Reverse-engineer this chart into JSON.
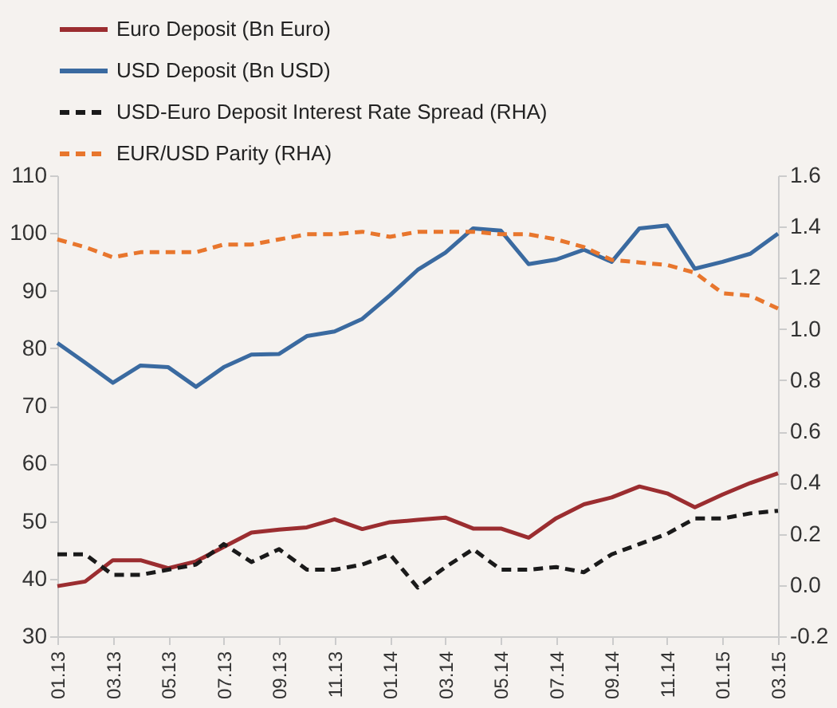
{
  "chart_data": {
    "type": "line",
    "categories": [
      "01.13",
      null,
      "03.13",
      null,
      "05.13",
      null,
      "07.13",
      null,
      "09.13",
      null,
      "11.13",
      null,
      "01.14",
      null,
      "03.14",
      null,
      "05.14",
      null,
      "07.14",
      null,
      "09.14",
      null,
      "11.14",
      null,
      "01.15",
      null,
      "03.15"
    ],
    "series": [
      {
        "name": "Euro Deposit (Bn Euro)",
        "color": "#9b2d30",
        "line_style": "solid",
        "values": [
          38.7,
          39.5,
          43.2,
          43.2,
          41.8,
          43.0,
          45.5,
          48.0,
          48.5,
          48.9,
          50.3,
          48.6,
          49.8,
          50.2,
          50.6,
          48.7,
          48.7,
          47.1,
          50.5,
          52.9,
          54.1,
          56.0,
          54.8,
          52.4,
          54.6,
          56.6,
          58.3
        ]
      },
      {
        "name": "USD Deposit (Bn USD)",
        "color": "#3a6aa0",
        "line_style": "solid",
        "values": [
          80.9,
          77.5,
          74.0,
          77.0,
          76.7,
          73.3,
          76.7,
          78.9,
          79.0,
          82.1,
          82.9,
          85.1,
          89.2,
          93.6,
          96.6,
          100.8,
          100.4,
          94.6,
          95.4,
          97.1,
          95.0,
          100.8,
          101.3,
          93.8,
          95.0,
          96.4,
          99.9
        ]
      },
      {
        "name": "USD-Euro Deposit Interest Rate Spread (RHA)",
        "color": "#1a1a1a",
        "line_style": "dashed",
        "axis": "y2",
        "values": [
          0.12,
          0.12,
          0.04,
          0.04,
          0.06,
          0.08,
          0.16,
          0.09,
          0.14,
          0.06,
          0.06,
          0.08,
          0.12,
          -0.01,
          0.07,
          0.14,
          0.06,
          0.06,
          0.07,
          0.05,
          0.12,
          0.16,
          0.2,
          0.26,
          0.26,
          0.28,
          0.29
        ]
      },
      {
        "name": "EUR/USD Parity (RHA)",
        "color": "#e8762d",
        "line_style": "dashed",
        "axis": "y2",
        "values": [
          1.35,
          1.32,
          1.28,
          1.3,
          1.3,
          1.3,
          1.33,
          1.33,
          1.35,
          1.37,
          1.37,
          1.38,
          1.36,
          1.38,
          1.38,
          1.38,
          1.37,
          1.37,
          1.35,
          1.32,
          1.27,
          1.26,
          1.25,
          1.22,
          1.14,
          1.13,
          1.08
        ]
      }
    ],
    "ylim": [
      30,
      110
    ],
    "yticks": [
      30,
      40,
      50,
      60,
      70,
      80,
      90,
      100,
      110
    ],
    "y2lim": [
      -0.2,
      1.6
    ],
    "y2ticks": [
      {
        "value": -0.2,
        "label": "-0.2"
      },
      {
        "value": 0,
        "label": "0.0"
      },
      {
        "value": 0.2,
        "label": "0.2"
      },
      {
        "value": 0.4,
        "label": "0.4"
      },
      {
        "value": 0.6,
        "label": "0.6"
      },
      {
        "value": 0.8,
        "label": "0.8"
      },
      {
        "value": 1.0,
        "label": "1.0"
      },
      {
        "value": 1.2,
        "label": "1.2"
      },
      {
        "value": 1.4,
        "label": "1.4"
      },
      {
        "value": 1.6,
        "label": "1.6"
      }
    ],
    "legend": "top",
    "marker": "none"
  }
}
